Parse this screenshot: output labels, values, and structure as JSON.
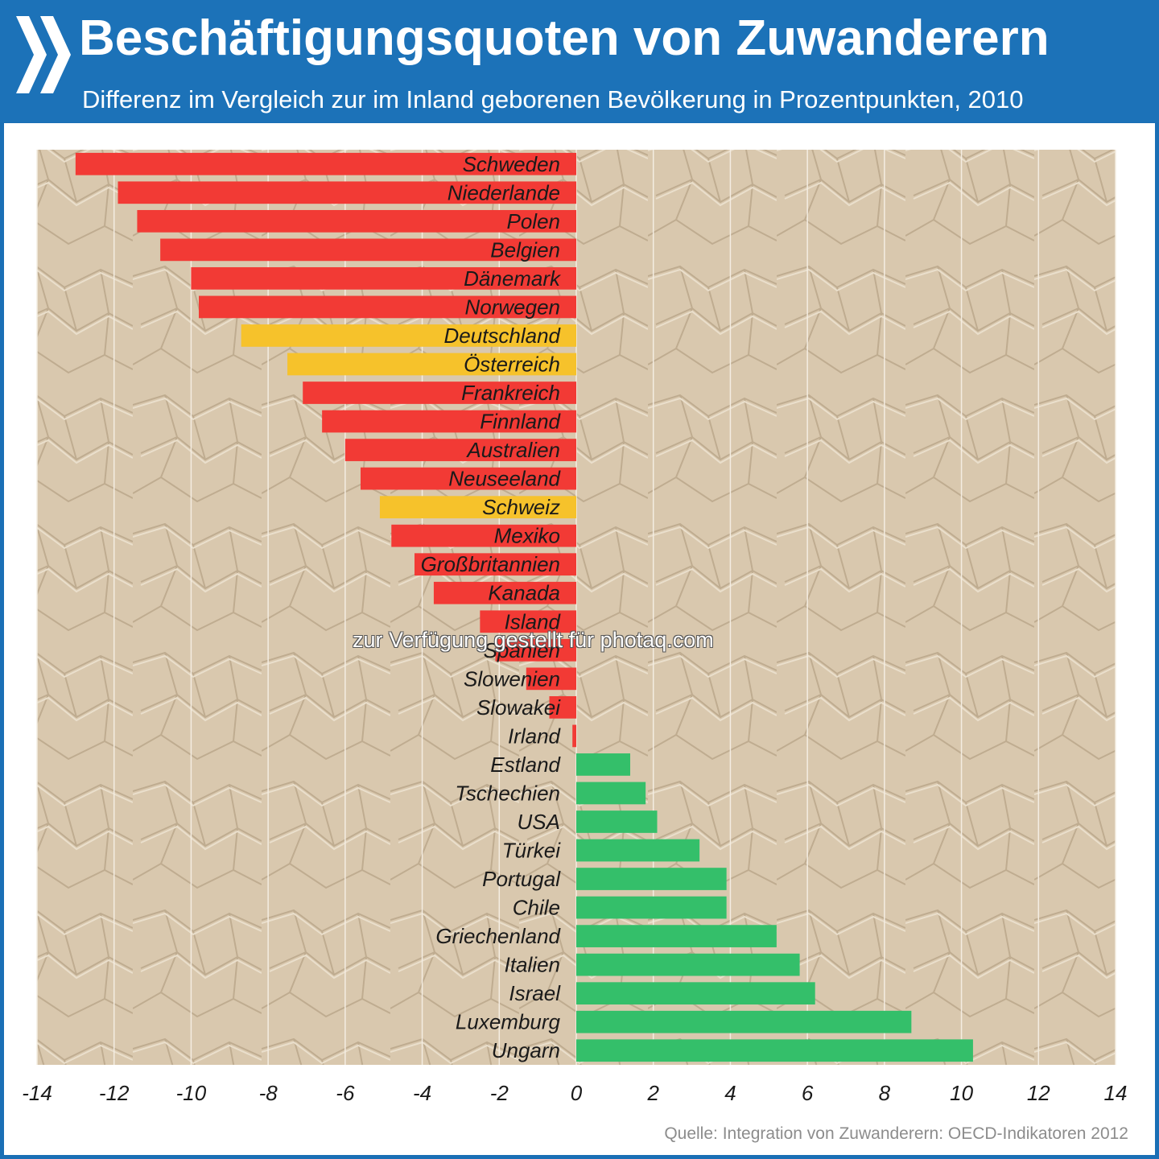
{
  "header": {
    "title": "Beschäftigungsquoten von Zuwanderern",
    "subtitle": "Differenz im Vergleich zur im Inland geborenen Bevölkerung in Prozentpunkten, 2010",
    "logo": "oecd-chevron-logo"
  },
  "watermark": "zur Verfügung gestellt für photaq.com",
  "source": "Quelle: Integration von Zuwanderern: OECD-Indikatoren 2012",
  "colors": {
    "negative": "#f23a35",
    "highlight": "#f6c22b",
    "positive": "#34bf6a",
    "plot_background": "#d8c7ad",
    "header": "#1c72b8"
  },
  "chart_data": {
    "type": "bar",
    "orientation": "horizontal",
    "title": "Beschäftigungsquoten von Zuwanderern",
    "subtitle": "Differenz im Vergleich zur im Inland geborenen Bevölkerung in Prozentpunkten, 2010",
    "categories": [
      "Schweden",
      "Niederlande",
      "Polen",
      "Belgien",
      "Dänemark",
      "Norwegen",
      "Deutschland",
      "Österreich",
      "Frankreich",
      "Finnland",
      "Australien",
      "Neuseeland",
      "Schweiz",
      "Mexiko",
      "Großbritannien",
      "Kanada",
      "Island",
      "Spanien",
      "Slowenien",
      "Slowakei",
      "Irland",
      "Estland",
      "Tschechien",
      "USA",
      "Türkei",
      "Portugal",
      "Chile",
      "Griechenland",
      "Italien",
      "Israel",
      "Luxemburg",
      "Ungarn"
    ],
    "values": [
      -13.0,
      -11.9,
      -11.4,
      -10.8,
      -10.0,
      -9.8,
      -8.7,
      -7.5,
      -7.1,
      -6.6,
      -6.0,
      -5.6,
      -5.1,
      -4.8,
      -4.2,
      -3.7,
      -2.5,
      -2.1,
      -1.3,
      -0.7,
      -0.1,
      1.4,
      1.8,
      2.1,
      3.2,
      3.9,
      3.9,
      5.2,
      5.8,
      6.2,
      8.7,
      10.3
    ],
    "highlighted": [
      "Deutschland",
      "Österreich",
      "Schweiz"
    ],
    "xlim": [
      -14,
      14
    ],
    "xticks": [
      -14,
      -12,
      -10,
      -8,
      -6,
      -4,
      -2,
      0,
      2,
      4,
      6,
      8,
      10,
      12,
      14
    ],
    "xticklabels": [
      "-14",
      "-12",
      "-10",
      "-8",
      "-6",
      "-4",
      "-2",
      "0",
      "2",
      "4",
      "6",
      "8",
      "10",
      "12",
      "14"
    ],
    "grid": true,
    "legend": "none"
  }
}
